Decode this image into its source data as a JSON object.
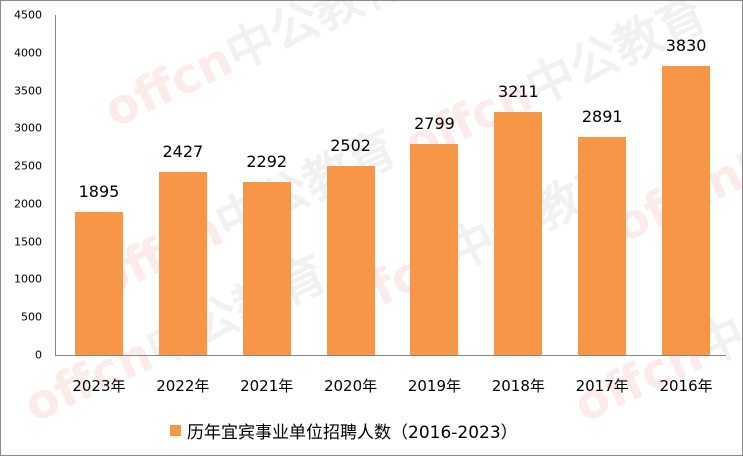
{
  "chart_data": {
    "type": "bar",
    "title": "",
    "categories": [
      "2023年",
      "2022年",
      "2021年",
      "2020年",
      "2019年",
      "2018年",
      "2017年",
      "2016年"
    ],
    "series": [
      {
        "name": "历年宜宾事业单位招聘人数（2016-2023）",
        "values": [
          1895,
          2427,
          2292,
          2502,
          2799,
          3211,
          2891,
          3830
        ],
        "color": "#F79646"
      }
    ],
    "data_labels": [
      "1895",
      "2427",
      "2292",
      "2502",
      "2799",
      "3211",
      "2891",
      "3830"
    ],
    "xlabel": "",
    "ylabel": "",
    "ylim": [
      0,
      4500
    ],
    "yticks": [
      "0",
      "500",
      "1000",
      "1500",
      "2000",
      "2500",
      "3000",
      "3500",
      "4000",
      "4500"
    ],
    "grid": false,
    "legend_position": "bottom"
  },
  "legend": {
    "label": "历年宜宾事业单位招聘人数（2016-2023）"
  },
  "watermark": {
    "text_en": "offcn",
    "text_cn": "中公教育"
  }
}
